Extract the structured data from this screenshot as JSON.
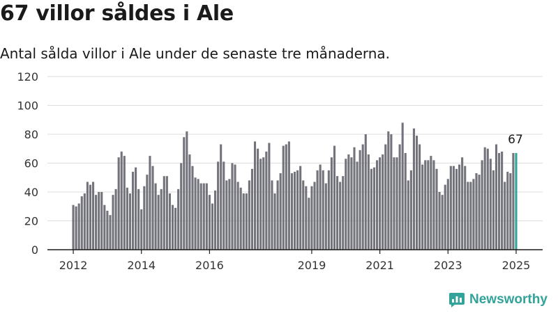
{
  "header": {
    "title": "67 villor såldes i Ale",
    "subtitle": "Antal sålda villor i Ale under de senaste tre månaderna."
  },
  "brand": {
    "name": "Newsworthy",
    "icon": "bar-chart-logo-icon"
  },
  "colors": {
    "bar": "#73737b",
    "highlight": "#31a39a",
    "grid": "#dcdcdc",
    "axis": "#1a1a1a"
  },
  "chart_data": {
    "type": "bar",
    "ylim": [
      0,
      120
    ],
    "yticks": [
      0,
      20,
      40,
      60,
      80,
      100,
      120
    ],
    "xticks": [
      {
        "label": "2012",
        "index": 0
      },
      {
        "label": "2014",
        "index": 24
      },
      {
        "label": "2016",
        "index": 48
      },
      {
        "label": "2019",
        "index": 84
      },
      {
        "label": "2021",
        "index": 108
      },
      {
        "label": "2023",
        "index": 132
      },
      {
        "label": "2025",
        "index": 156
      }
    ],
    "values": [
      31,
      30,
      32,
      37,
      39,
      47,
      45,
      47,
      38,
      40,
      40,
      31,
      27,
      24,
      38,
      42,
      64,
      68,
      65,
      43,
      39,
      54,
      57,
      42,
      28,
      44,
      52,
      65,
      58,
      46,
      38,
      42,
      51,
      51,
      39,
      31,
      29,
      42,
      60,
      78,
      82,
      66,
      58,
      50,
      49,
      46,
      46,
      46,
      38,
      32,
      41,
      61,
      73,
      61,
      48,
      49,
      60,
      59,
      47,
      43,
      39,
      39,
      48,
      56,
      75,
      70,
      63,
      64,
      68,
      74,
      48,
      39,
      48,
      53,
      72,
      73,
      75,
      53,
      54,
      55,
      58,
      48,
      44,
      36,
      44,
      47,
      55,
      59,
      55,
      46,
      55,
      64,
      72,
      51,
      47,
      51,
      63,
      66,
      64,
      71,
      61,
      69,
      73,
      80,
      66,
      56,
      57,
      62,
      64,
      66,
      73,
      82,
      80,
      64,
      64,
      73,
      88,
      67,
      48,
      55,
      84,
      79,
      73,
      59,
      62,
      62,
      65,
      62,
      56,
      40,
      38,
      45,
      49,
      58,
      58,
      56,
      59,
      64,
      58,
      47,
      47,
      49,
      53,
      52,
      62,
      71,
      70,
      63,
      55,
      73,
      67,
      68,
      47,
      54,
      53,
      67,
      67
    ],
    "highlight_index": 156,
    "highlight_label": "67"
  }
}
